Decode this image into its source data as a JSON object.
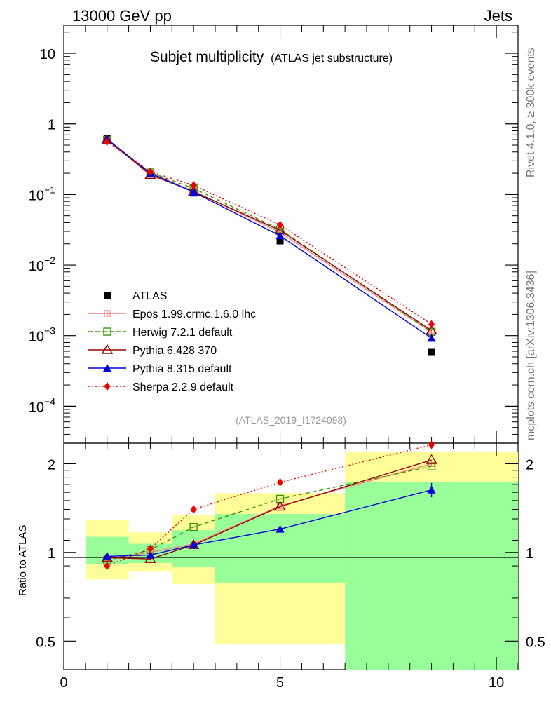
{
  "header": {
    "beam": "13000 GeV pp",
    "process": "Jets",
    "side_rivet": "Rivet 4.1.0, ≥ 300k events",
    "side_mcplots": "mcplots.cern.ch [arXiv:1306.3436]",
    "analysis_id": "(ATLAS_2019_I1724098)"
  },
  "chart_data": {
    "main": {
      "type": "line",
      "title": "Subjet multiplicity",
      "subtitle": "(ATLAS jet substructure)",
      "yscale": "log",
      "xlim": [
        0,
        10.5
      ],
      "ylim": [
        3e-05,
        25
      ],
      "ytick_values": [
        0.0001,
        0.001,
        0.01,
        0.1,
        1,
        10
      ],
      "ytick_labels": [
        {
          "base": "10",
          "exp": "−4"
        },
        {
          "base": "10",
          "exp": "−3"
        },
        {
          "base": "10",
          "exp": "−2"
        },
        {
          "base": "10",
          "exp": "−1"
        },
        {
          "base": "1",
          "exp": ""
        },
        {
          "base": "10",
          "exp": ""
        }
      ],
      "legend_position": "lower-left",
      "series": [
        {
          "name": "ATLAS",
          "color": "#000000",
          "marker": "square-filled",
          "line": "none",
          "x": [
            1,
            2,
            3,
            5,
            8.5
          ],
          "y": [
            0.62,
            0.2,
            0.105,
            0.022,
            0.00058
          ]
        },
        {
          "name": "Epos 1.99.crmc.1.6.0 lhc",
          "color": "#f08080",
          "marker": "cross-box",
          "line": "solid",
          "x": [
            1,
            2,
            3,
            5,
            8.5
          ],
          "y": [
            0.59,
            0.2,
            0.112,
            0.029,
            0.00112
          ]
        },
        {
          "name": "Herwig 7.2.1 default",
          "color": "#339900",
          "marker": "square-open",
          "line": "dashed",
          "x": [
            1,
            2,
            3,
            5,
            8.5
          ],
          "y": [
            0.59,
            0.205,
            0.122,
            0.032,
            0.00113
          ]
        },
        {
          "name": "Pythia 6.428 370",
          "color": "#990000",
          "marker": "triangle-open",
          "line": "solid",
          "x": [
            1,
            2,
            3,
            5,
            8.5
          ],
          "y": [
            0.6,
            0.19,
            0.11,
            0.031,
            0.00118
          ]
        },
        {
          "name": "Pythia 8.315 default",
          "color": "#0000dd",
          "marker": "triangle-filled",
          "line": "solid",
          "x": [
            1,
            2,
            3,
            5,
            8.5
          ],
          "y": [
            0.61,
            0.2,
            0.108,
            0.026,
            0.00092
          ]
        },
        {
          "name": "Sherpa 2.2.9 default",
          "color": "#ee0000",
          "marker": "diamond-filled",
          "line": "dotted",
          "x": [
            1,
            2,
            3,
            5,
            8.5
          ],
          "y": [
            0.56,
            0.21,
            0.135,
            0.037,
            0.00145
          ]
        }
      ]
    },
    "ratio": {
      "type": "line",
      "ylabel": "Ratio to ATLAS",
      "xlabel": "",
      "yscale": "log",
      "xlim": [
        0,
        10.5
      ],
      "ylim": [
        0.4,
        2.35
      ],
      "ytick_values": [
        0.5,
        1,
        2
      ],
      "ytick_labels": [
        "0.5",
        "1",
        "2"
      ],
      "xtick_values": [
        0,
        5,
        10
      ],
      "xtick_labels": [
        "0",
        "5",
        "10"
      ],
      "reference": 1,
      "bands": [
        {
          "x0": 0.5,
          "x1": 1.5,
          "inner": [
            0.91,
            1.13
          ],
          "outer": [
            0.81,
            1.29
          ]
        },
        {
          "x0": 1.5,
          "x1": 2.5,
          "inner": [
            0.92,
            1.07
          ],
          "outer": [
            0.86,
            1.17
          ]
        },
        {
          "x0": 2.5,
          "x1": 3.5,
          "inner": [
            0.89,
            1.19
          ],
          "outer": [
            0.78,
            1.34
          ]
        },
        {
          "x0": 3.5,
          "x1": 6.5,
          "inner": [
            0.79,
            1.35
          ],
          "outer": [
            0.49,
            1.59
          ]
        },
        {
          "x0": 6.5,
          "x1": 10.5,
          "inner": [
            0.4,
            1.73
          ],
          "outer": [
            0.49,
            2.2
          ]
        }
      ],
      "series": [
        {
          "name": "Epos 1.99.crmc.1.6.0 lhc",
          "color": "#f08080",
          "marker": "cross-box",
          "line": "solid",
          "x": [
            1,
            2,
            3,
            5,
            8.5
          ],
          "y": [
            0.95,
            1.0,
            1.07,
            1.44,
            2.0
          ]
        },
        {
          "name": "Herwig 7.2.1 default",
          "color": "#339900",
          "marker": "square-open",
          "line": "dashed",
          "x": [
            1,
            2,
            3,
            5,
            8.5
          ],
          "y": [
            0.94,
            1.02,
            1.22,
            1.52,
            1.96
          ]
        },
        {
          "name": "Pythia 6.428 370",
          "color": "#990000",
          "marker": "triangle-open",
          "line": "solid",
          "x": [
            1,
            2,
            3,
            5,
            8.5
          ],
          "y": [
            0.96,
            0.95,
            1.06,
            1.43,
            2.06
          ]
        },
        {
          "name": "Pythia 8.315 default",
          "color": "#0000dd",
          "marker": "triangle-filled",
          "line": "solid",
          "x": [
            1,
            2,
            3,
            5,
            8.5
          ],
          "y": [
            0.97,
            0.98,
            1.06,
            1.2,
            1.63
          ],
          "err_last": 0.09
        },
        {
          "name": "Sherpa 2.2.9 default",
          "color": "#ee0000",
          "marker": "diamond-filled",
          "line": "dotted",
          "x": [
            1,
            2,
            3,
            5,
            8.5
          ],
          "y": [
            0.9,
            1.03,
            1.4,
            1.73,
            2.32
          ]
        }
      ]
    }
  }
}
